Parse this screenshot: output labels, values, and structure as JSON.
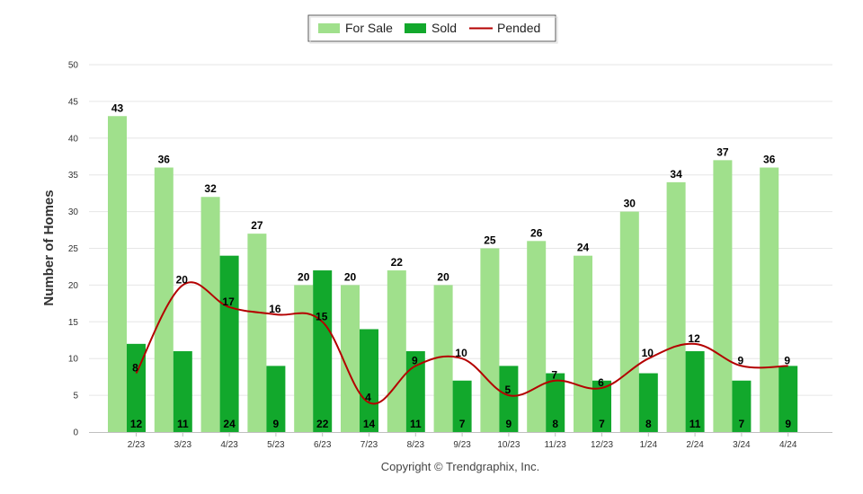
{
  "chart_data": {
    "type": "bar",
    "ylabel": "Number of Homes",
    "ylim": [
      0,
      50
    ],
    "yticks": [
      0,
      5,
      10,
      15,
      20,
      25,
      30,
      35,
      40,
      45,
      50
    ],
    "categories": [
      "2/23",
      "3/23",
      "4/23",
      "5/23",
      "6/23",
      "7/23",
      "8/23",
      "9/23",
      "10/23",
      "11/23",
      "12/23",
      "1/24",
      "2/24",
      "3/24",
      "4/24"
    ],
    "series": [
      {
        "name": "For Sale",
        "kind": "bar",
        "color": "#a0e08c",
        "values": [
          43,
          36,
          32,
          27,
          20,
          20,
          22,
          20,
          25,
          26,
          24,
          30,
          34,
          37,
          36
        ]
      },
      {
        "name": "Sold",
        "kind": "bar",
        "color": "#12a82c",
        "values": [
          12,
          11,
          24,
          9,
          22,
          14,
          11,
          7,
          9,
          8,
          7,
          8,
          11,
          7,
          9
        ]
      },
      {
        "name": "Pended",
        "kind": "line",
        "color": "#b40000",
        "values": [
          8,
          20,
          17,
          16,
          15,
          4,
          9,
          10,
          5,
          7,
          6,
          10,
          12,
          9,
          9
        ]
      }
    ],
    "legend": "top-center",
    "grid": true
  },
  "credit": "Copyright © Trendgraphix, Inc."
}
